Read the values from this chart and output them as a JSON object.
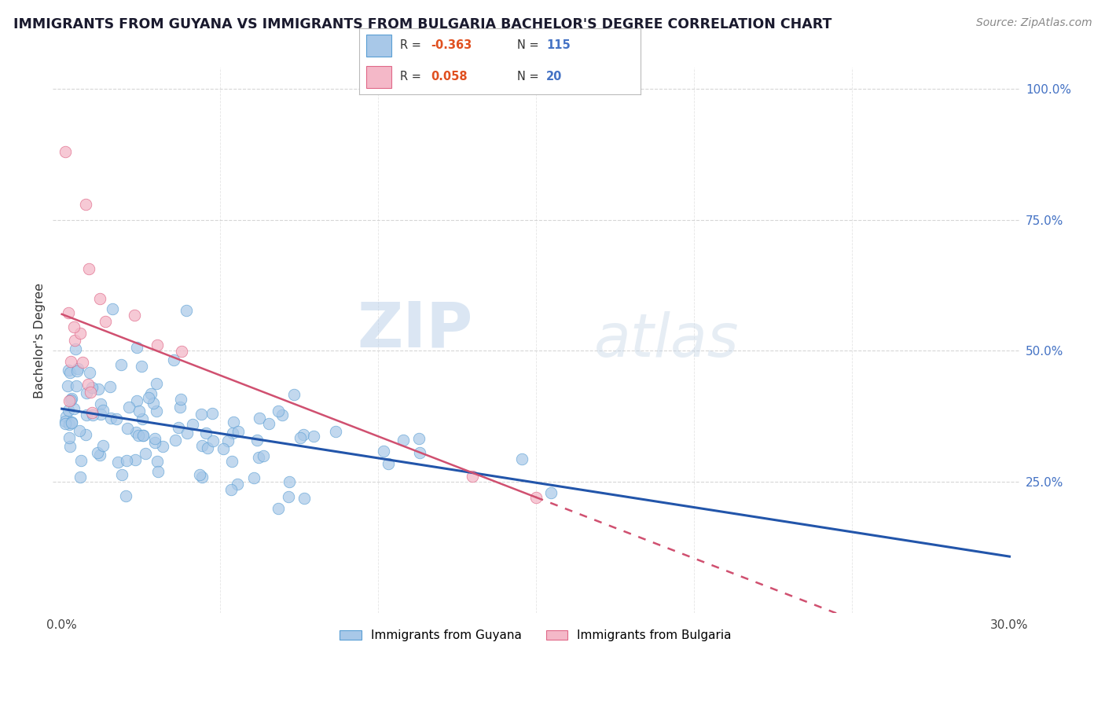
{
  "title": "IMMIGRANTS FROM GUYANA VS IMMIGRANTS FROM BULGARIA BACHELOR'S DEGREE CORRELATION CHART",
  "source_text": "Source: ZipAtlas.com",
  "ylabel": "Bachelor's Degree",
  "xlim_min": 0.0,
  "xlim_max": 0.3,
  "ylim_min": 0.0,
  "ylim_max": 1.0,
  "guyana_color": "#a8c8e8",
  "bulgaria_color": "#f4b8c8",
  "guyana_edge_color": "#5a9fd4",
  "bulgaria_edge_color": "#e06888",
  "trend_blue": "#2255aa",
  "trend_pink": "#d05070",
  "R_guyana": "-0.363",
  "N_guyana": "115",
  "R_bulgaria": "0.058",
  "N_bulgaria": "20",
  "watermark_zip": "ZIP",
  "watermark_atlas": "atlas",
  "background_color": "#ffffff",
  "grid_color": "#cccccc",
  "legend_label_guyana": "Immigrants from Guyana",
  "legend_label_bulgaria": "Immigrants from Bulgaria",
  "right_ytick_labels": [
    "25.0%",
    "50.0%",
    "75.0%",
    "100.0%"
  ],
  "right_ytick_vals": [
    0.25,
    0.5,
    0.75,
    1.0
  ],
  "title_color": "#1a1a2e",
  "source_color": "#888888",
  "ytick_color": "#4472c4",
  "legend_box_color": "#cccccc",
  "R_color": "#e05020",
  "N_color": "#4472c4"
}
